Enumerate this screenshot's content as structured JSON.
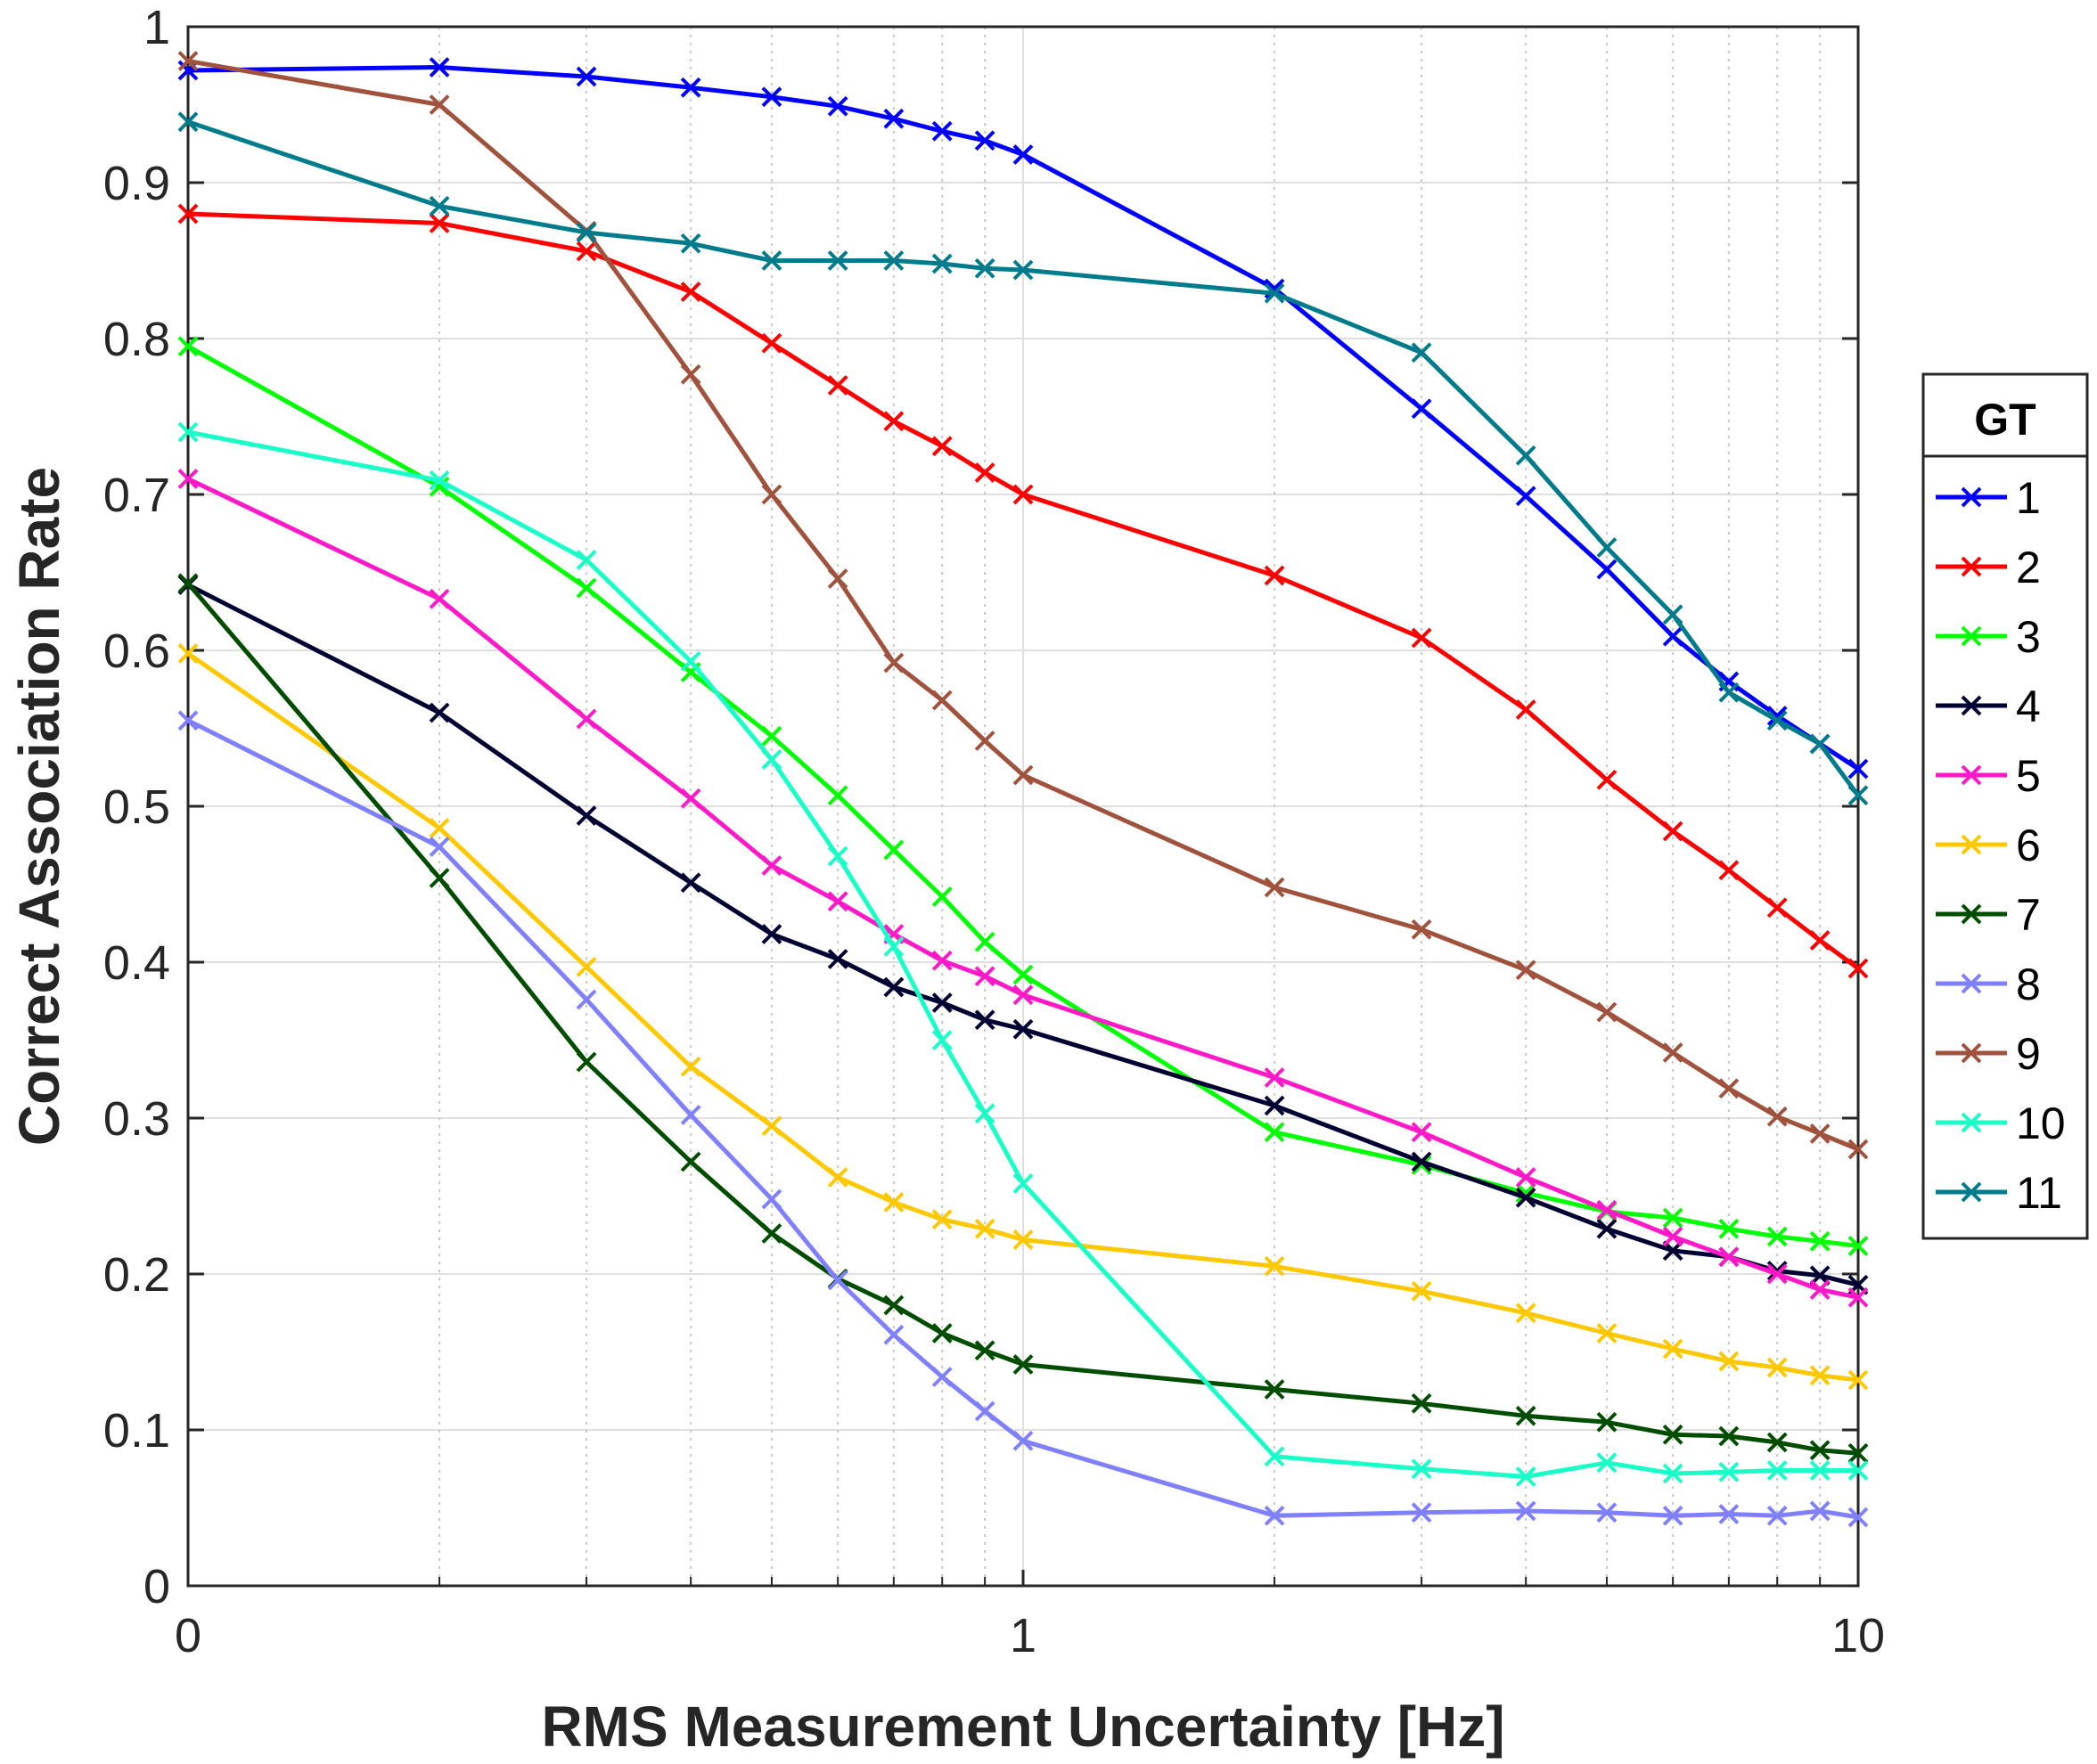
{
  "chart_data": {
    "type": "line",
    "title": "",
    "xlabel": "RMS Measurement Uncertainty [Hz]",
    "ylabel": "Correct Association Rate",
    "xscale": "log",
    "xlim": [
      0.1,
      10
    ],
    "ylim": [
      0,
      1
    ],
    "grid": true,
    "xtick_labels": [
      "0",
      "1",
      "10"
    ],
    "ytick_labels": [
      "0",
      "0.1",
      "0.2",
      "0.3",
      "0.4",
      "0.5",
      "0.6",
      "0.7",
      "0.8",
      "0.9",
      "1"
    ],
    "marker": "x",
    "x": [
      0.1,
      0.2,
      0.3,
      0.4,
      0.5,
      0.6,
      0.7,
      0.8,
      0.9,
      1,
      2,
      3,
      4,
      5,
      6,
      7,
      8,
      9,
      10
    ],
    "legend": {
      "title": "GT",
      "position": "outside-right"
    },
    "series": [
      {
        "name": "1",
        "color": "#0000ff",
        "values": [
          0.972,
          0.974,
          0.968,
          0.961,
          0.955,
          0.949,
          0.941,
          0.933,
          0.927,
          0.918,
          0.832,
          0.755,
          0.699,
          0.652,
          0.609,
          0.58,
          0.558,
          0.54,
          0.524
        ]
      },
      {
        "name": "2",
        "color": "#ff0000",
        "values": [
          0.88,
          0.874,
          0.856,
          0.83,
          0.797,
          0.77,
          0.747,
          0.731,
          0.714,
          0.7,
          0.648,
          0.608,
          0.562,
          0.517,
          0.484,
          0.459,
          0.435,
          0.414,
          0.396
        ]
      },
      {
        "name": "3",
        "color": "#00ff00",
        "values": [
          0.795,
          0.705,
          0.64,
          0.586,
          0.545,
          0.507,
          0.472,
          0.442,
          0.413,
          0.392,
          0.291,
          0.27,
          0.252,
          0.24,
          0.236,
          0.229,
          0.224,
          0.221,
          0.218
        ]
      },
      {
        "name": "4",
        "color": "#000033",
        "values": [
          0.642,
          0.56,
          0.494,
          0.451,
          0.418,
          0.402,
          0.384,
          0.374,
          0.363,
          0.357,
          0.308,
          0.272,
          0.249,
          0.229,
          0.215,
          0.211,
          0.202,
          0.199,
          0.193
        ]
      },
      {
        "name": "5",
        "color": "#ff19c8",
        "values": [
          0.71,
          0.633,
          0.556,
          0.505,
          0.462,
          0.439,
          0.418,
          0.401,
          0.391,
          0.379,
          0.326,
          0.291,
          0.262,
          0.241,
          0.224,
          0.211,
          0.2,
          0.19,
          0.185
        ]
      },
      {
        "name": "6",
        "color": "#ffc800",
        "values": [
          0.598,
          0.486,
          0.397,
          0.333,
          0.295,
          0.262,
          0.246,
          0.235,
          0.229,
          0.222,
          0.205,
          0.189,
          0.175,
          0.162,
          0.152,
          0.144,
          0.14,
          0.135,
          0.132
        ]
      },
      {
        "name": "7",
        "color": "#004d00",
        "values": [
          0.643,
          0.454,
          0.336,
          0.272,
          0.226,
          0.197,
          0.18,
          0.162,
          0.151,
          0.142,
          0.126,
          0.117,
          0.109,
          0.105,
          0.097,
          0.096,
          0.092,
          0.087,
          0.085
        ]
      },
      {
        "name": "8",
        "color": "#8080ff",
        "values": [
          0.555,
          0.474,
          0.376,
          0.302,
          0.248,
          0.196,
          0.161,
          0.134,
          0.112,
          0.093,
          0.045,
          0.047,
          0.048,
          0.047,
          0.045,
          0.046,
          0.045,
          0.048,
          0.044
        ]
      },
      {
        "name": "9",
        "color": "#a0523d",
        "values": [
          0.978,
          0.95,
          0.869,
          0.777,
          0.7,
          0.646,
          0.592,
          0.568,
          0.542,
          0.52,
          0.448,
          0.421,
          0.395,
          0.368,
          0.342,
          0.319,
          0.301,
          0.29,
          0.28
        ]
      },
      {
        "name": "10",
        "color": "#19ffc8",
        "values": [
          0.74,
          0.709,
          0.658,
          0.593,
          0.53,
          0.468,
          0.41,
          0.35,
          0.303,
          0.258,
          0.083,
          0.075,
          0.07,
          0.079,
          0.072,
          0.073,
          0.074,
          0.074,
          0.074
        ]
      },
      {
        "name": "11",
        "color": "#007b8c",
        "values": [
          0.939,
          0.885,
          0.868,
          0.861,
          0.85,
          0.85,
          0.85,
          0.848,
          0.845,
          0.844,
          0.829,
          0.791,
          0.725,
          0.666,
          0.623,
          0.573,
          0.555,
          0.54,
          0.507
        ]
      }
    ]
  }
}
